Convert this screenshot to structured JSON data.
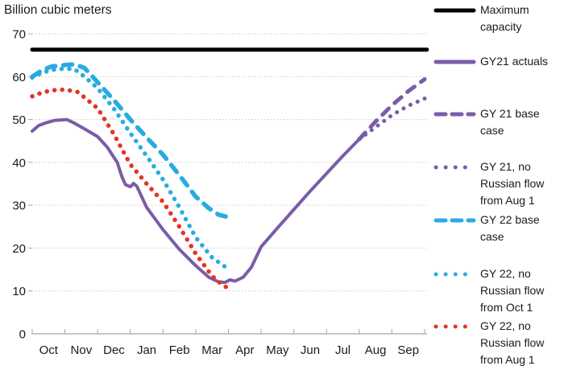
{
  "title": "Billion cubic meters",
  "colors": {
    "black": "#000000",
    "purple": "#7a5ca8",
    "cyan": "#29abe2",
    "red": "#e63323",
    "gridline": "#c9c9c9",
    "axis": "#a6a6a6",
    "text": "#1a1a1a"
  },
  "chart_data": {
    "type": "line",
    "title": "Billion cubic meters",
    "xlabel": "",
    "ylabel": "Billion cubic meters",
    "x_tick_labels": [
      "Oct",
      "Nov",
      "Dec",
      "Jan",
      "Feb",
      "Mar",
      "Apr",
      "May",
      "Jun",
      "Jul",
      "Aug",
      "Sep"
    ],
    "y_ticks": [
      0,
      10,
      20,
      30,
      40,
      50,
      60,
      70
    ],
    "ylim": [
      0,
      70
    ],
    "xlim_months": [
      0,
      12
    ],
    "grid": "horizontal-dotted",
    "legend_position": "right",
    "series": [
      {
        "name": "Maximum capacity",
        "style": "solid",
        "color": "#000000",
        "width": 5,
        "points": [
          [
            0,
            66.3
          ],
          [
            12.07,
            66.3
          ]
        ]
      },
      {
        "name": "GY21 actuals",
        "style": "solid",
        "color": "#7a5ca8",
        "width": 4,
        "points": [
          [
            0,
            47.3
          ],
          [
            0.2,
            48.6
          ],
          [
            0.45,
            49.3
          ],
          [
            0.7,
            49.8
          ],
          [
            0.9,
            49.9
          ],
          [
            1.05,
            50
          ],
          [
            1.25,
            49.3
          ],
          [
            1.6,
            47.8
          ],
          [
            2,
            46
          ],
          [
            2.3,
            43.5
          ],
          [
            2.6,
            40
          ],
          [
            2.75,
            36.5
          ],
          [
            2.85,
            34.8
          ],
          [
            3.0,
            34.3
          ],
          [
            3.1,
            35.1
          ],
          [
            3.2,
            34.4
          ],
          [
            3.5,
            29.5
          ],
          [
            4,
            24.3
          ],
          [
            4.5,
            19.7
          ],
          [
            5,
            15.9
          ],
          [
            5.4,
            13.2
          ],
          [
            5.7,
            12.1
          ],
          [
            5.9,
            12.0
          ],
          [
            6.05,
            12.6
          ],
          [
            6.2,
            12.3
          ],
          [
            6.45,
            13.2
          ],
          [
            6.7,
            15.5
          ],
          [
            7,
            20.3
          ],
          [
            7.5,
            24.7
          ],
          [
            8,
            29
          ],
          [
            8.5,
            33.3
          ],
          [
            9,
            37.4
          ],
          [
            9.5,
            41.5
          ],
          [
            10,
            45.4
          ]
        ]
      },
      {
        "name": "GY 21 base case",
        "style": "dashed",
        "color": "#7a5ca8",
        "width": 5,
        "points": [
          [
            10,
            45.4
          ],
          [
            10.5,
            49.5
          ],
          [
            11,
            53.3
          ],
          [
            11.5,
            56.6
          ],
          [
            12,
            59.4
          ]
        ]
      },
      {
        "name": "GY 21, no Russian flow from Aug 1",
        "style": "dotted",
        "color": "#7a5ca8",
        "width": 5,
        "points": [
          [
            10,
            45.4
          ],
          [
            10.5,
            48.2
          ],
          [
            11,
            51.0
          ],
          [
            11.5,
            53.2
          ],
          [
            12,
            54.9
          ]
        ]
      },
      {
        "name": "GY 22 base case",
        "style": "dashed",
        "color": "#29abe2",
        "width": 5.5,
        "points": [
          [
            0,
            60
          ],
          [
            0.3,
            61.5
          ],
          [
            0.6,
            62.4
          ],
          [
            1,
            62.7
          ],
          [
            1.3,
            62.9
          ],
          [
            1.6,
            62
          ],
          [
            2,
            58.7
          ],
          [
            2.5,
            54.5
          ],
          [
            3,
            50
          ],
          [
            3.5,
            45.8
          ],
          [
            4,
            41.8
          ],
          [
            4.5,
            37
          ],
          [
            5,
            32
          ],
          [
            5.4,
            29.3
          ],
          [
            5.7,
            27.8
          ],
          [
            6.05,
            27.1
          ]
        ]
      },
      {
        "name": "GY 22, no Russian flow from Oct 1",
        "style": "dotted",
        "color": "#29abe2",
        "width": 5.5,
        "points": [
          [
            0,
            59.8
          ],
          [
            0.3,
            60.9
          ],
          [
            0.6,
            61.6
          ],
          [
            1,
            61.9
          ],
          [
            1.3,
            61.7
          ],
          [
            1.6,
            60
          ],
          [
            2,
            57.3
          ],
          [
            2.5,
            52.5
          ],
          [
            3,
            46.8
          ],
          [
            3.5,
            41.5
          ],
          [
            4,
            36
          ],
          [
            4.5,
            29.5
          ],
          [
            5,
            22.5
          ],
          [
            5.5,
            17.8
          ],
          [
            6,
            15.1
          ]
        ]
      },
      {
        "name": "GY 22, no Russian flow from Aug 1",
        "style": "dotted",
        "color": "#e63323",
        "width": 5.5,
        "points": [
          [
            0,
            55.4
          ],
          [
            0.3,
            56.3
          ],
          [
            0.6,
            56.8
          ],
          [
            1,
            57
          ],
          [
            1.4,
            56.4
          ],
          [
            2,
            52.6
          ],
          [
            2.5,
            46.5
          ],
          [
            3,
            39.5
          ],
          [
            3.5,
            35
          ],
          [
            4,
            30.8
          ],
          [
            4.5,
            25
          ],
          [
            5,
            18.7
          ],
          [
            5.5,
            13.5
          ],
          [
            5.8,
            11.5
          ],
          [
            6,
            10.6
          ]
        ]
      }
    ]
  },
  "legend": {
    "items": [
      {
        "label": "Maximum\ncapacity",
        "style": "solid",
        "color": "#000000"
      },
      {
        "label": "GY21 actuals",
        "style": "solid",
        "color": "#7a5ca8"
      },
      {
        "label": "GY 21 base\ncase",
        "style": "dashed",
        "color": "#7a5ca8"
      },
      {
        "label": "GY 21, no\nRussian flow\nfrom Aug 1",
        "style": "dotted",
        "color": "#7a5ca8"
      },
      {
        "label": "GY 22 base\ncase",
        "style": "dashed",
        "color": "#29abe2"
      },
      {
        "label": "GY 22, no\nRussian flow\nfrom Oct 1",
        "style": "dotted",
        "color": "#29abe2"
      },
      {
        "label": "GY 22, no\nRussian flow\nfrom Aug 1",
        "style": "dotted",
        "color": "#e63323"
      }
    ]
  }
}
